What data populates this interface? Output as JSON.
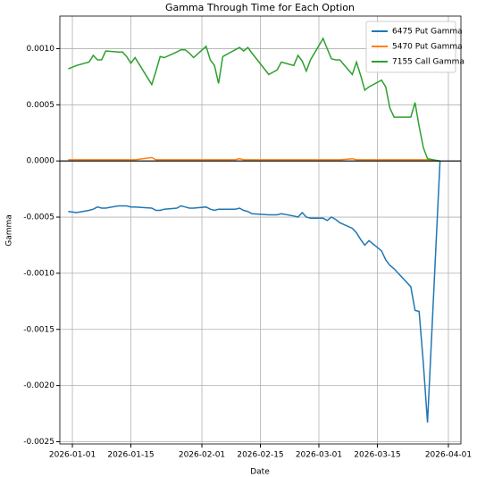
{
  "chart_data": {
    "type": "line",
    "title": "Gamma Through Time for Each Option",
    "xlabel": "Date",
    "ylabel": "Gamma",
    "x": [
      "2025-12-31",
      "2026-01-02",
      "2026-01-05",
      "2026-01-06",
      "2026-01-07",
      "2026-01-08",
      "2026-01-09",
      "2026-01-12",
      "2026-01-13",
      "2026-01-14",
      "2026-01-15",
      "2026-01-16",
      "2026-01-20",
      "2026-01-21",
      "2026-01-22",
      "2026-01-23",
      "2026-01-26",
      "2026-01-27",
      "2026-01-28",
      "2026-01-29",
      "2026-01-30",
      "2026-02-02",
      "2026-02-03",
      "2026-02-04",
      "2026-02-05",
      "2026-02-06",
      "2026-02-09",
      "2026-02-10",
      "2026-02-11",
      "2026-02-12",
      "2026-02-13",
      "2026-02-17",
      "2026-02-18",
      "2026-02-19",
      "2026-02-20",
      "2026-02-23",
      "2026-02-24",
      "2026-02-25",
      "2026-02-26",
      "2026-02-27",
      "2026-03-02",
      "2026-03-03",
      "2026-03-04",
      "2026-03-05",
      "2026-03-06",
      "2026-03-09",
      "2026-03-10",
      "2026-03-11",
      "2026-03-12",
      "2026-03-13",
      "2026-03-16",
      "2026-03-17",
      "2026-03-18",
      "2026-03-19",
      "2026-03-20",
      "2026-03-23",
      "2026-03-24",
      "2026-03-25",
      "2026-03-26",
      "2026-03-27",
      "2026-03-30"
    ],
    "series": [
      {
        "name": "6475 Put Gamma",
        "color": "#1f77b4",
        "values": [
          -0.00045,
          -0.00046,
          -0.00044,
          -0.00043,
          -0.00041,
          -0.00042,
          -0.00042,
          -0.0004,
          -0.0004,
          -0.0004,
          -0.00041,
          -0.00041,
          -0.00042,
          -0.00044,
          -0.00044,
          -0.00043,
          -0.00042,
          -0.0004,
          -0.00041,
          -0.00042,
          -0.00042,
          -0.00041,
          -0.00043,
          -0.00044,
          -0.00043,
          -0.00043,
          -0.00043,
          -0.00042,
          -0.00044,
          -0.00045,
          -0.00047,
          -0.00048,
          -0.00048,
          -0.00048,
          -0.00047,
          -0.00049,
          -0.0005,
          -0.00046,
          -0.0005,
          -0.00051,
          -0.00051,
          -0.00053,
          -0.0005,
          -0.00052,
          -0.00055,
          -0.0006,
          -0.00064,
          -0.0007,
          -0.00075,
          -0.00071,
          -0.0008,
          -0.00088,
          -0.00093,
          -0.00096,
          -0.001,
          -0.00112,
          -0.00133,
          -0.00134,
          -0.0018,
          -0.00233,
          0
        ]
      },
      {
        "name": "5470 Put Gamma",
        "color": "#ff7f0e",
        "values": [
          1e-05,
          1e-05,
          1e-05,
          1e-05,
          1e-05,
          1e-05,
          1e-05,
          1e-05,
          1e-05,
          1e-05,
          1e-05,
          1e-05,
          3e-05,
          1e-05,
          1e-05,
          1e-05,
          1e-05,
          1e-05,
          1e-05,
          1e-05,
          1e-05,
          1e-05,
          1e-05,
          1e-05,
          1e-05,
          1e-05,
          1e-05,
          2e-05,
          1e-05,
          1e-05,
          1e-05,
          1e-05,
          1e-05,
          1e-05,
          1e-05,
          1e-05,
          1e-05,
          1e-05,
          1e-05,
          1e-05,
          1e-05,
          1e-05,
          1e-05,
          1e-05,
          1e-05,
          2e-05,
          1e-05,
          1e-05,
          1e-05,
          1e-05,
          1e-05,
          1e-05,
          1e-05,
          1e-05,
          1e-05,
          1e-05,
          1e-05,
          1e-05,
          1e-05,
          1e-05,
          0
        ]
      },
      {
        "name": "7155 Call Gamma",
        "color": "#2ca02c",
        "values": [
          0.00082,
          0.00085,
          0.00088,
          0.00094,
          0.0009,
          0.0009,
          0.00098,
          0.00097,
          0.00097,
          0.00093,
          0.00087,
          0.00092,
          0.00068,
          0.0008,
          0.00093,
          0.00092,
          0.00097,
          0.00099,
          0.00099,
          0.00096,
          0.00092,
          0.00102,
          0.0009,
          0.00085,
          0.00069,
          0.00093,
          0.00099,
          0.00101,
          0.00098,
          0.00101,
          0.00096,
          0.00077,
          0.00079,
          0.00081,
          0.00088,
          0.00085,
          0.00094,
          0.00089,
          0.0008,
          0.0009,
          0.00109,
          0.001,
          0.00091,
          0.0009,
          0.0009,
          0.00077,
          0.00088,
          0.00076,
          0.00063,
          0.00066,
          0.00072,
          0.00066,
          0.00047,
          0.00039,
          0.00039,
          0.00039,
          0.00052,
          0.00031,
          0.00012,
          2e-05,
          0
        ]
      }
    ],
    "xlim": [
      "2025-12-29",
      "2026-04-04"
    ],
    "xticks": [
      "2026-01-01",
      "2026-01-15",
      "2026-02-01",
      "2026-02-15",
      "2026-03-01",
      "2026-03-15",
      "2026-04-01"
    ],
    "ylim": [
      -0.00252,
      0.00129
    ],
    "yticks": [
      {
        "value": -0.0025,
        "label": "-0.0025"
      },
      {
        "value": -0.002,
        "label": "-0.0020"
      },
      {
        "value": -0.0015,
        "label": "-0.0015"
      },
      {
        "value": -0.001,
        "label": "-0.0010"
      },
      {
        "value": -0.0005,
        "label": "-0.0005"
      },
      {
        "value": 0,
        "label": "0.0000"
      },
      {
        "value": 0.0005,
        "label": "0.0005"
      },
      {
        "value": 0.001,
        "label": "0.0010"
      }
    ],
    "axhline": 0,
    "grid": true,
    "legend": "upper right"
  }
}
